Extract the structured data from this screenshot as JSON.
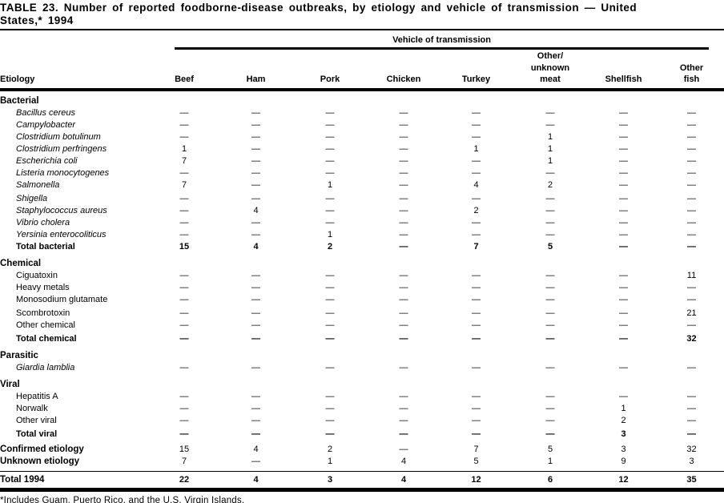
{
  "title": {
    "line1": "TABLE 23. Number of reported foodborne-disease outbreaks, by etiology and vehicle of transmission — United",
    "line2": "States,* 1994"
  },
  "table": {
    "span_header": "Vehicle of transmission",
    "etiology_header": "Etiology",
    "columns": [
      "Beef",
      "Ham",
      "Pork",
      "Chicken",
      "Turkey",
      "Other/\nunknown\nmeat",
      "Shellfish",
      "Other\nfish"
    ],
    "rows": [
      {
        "label": "Bacterial",
        "style": "section"
      },
      {
        "label": "Bacillus cereus",
        "style": "italic",
        "values": [
          "—",
          "—",
          "—",
          "—",
          "—",
          "—",
          "—",
          "—"
        ]
      },
      {
        "label": "Campylobacter",
        "style": "italic",
        "values": [
          "—",
          "—",
          "—",
          "—",
          "—",
          "—",
          "—",
          "—"
        ]
      },
      {
        "label": "Clostridium botulinum",
        "style": "italic",
        "values": [
          "—",
          "—",
          "—",
          "—",
          "—",
          "1",
          "—",
          "—"
        ]
      },
      {
        "label": "Clostridium perfringens",
        "style": "italic",
        "values": [
          "1",
          "—",
          "—",
          "—",
          "1",
          "1",
          "—",
          "—"
        ]
      },
      {
        "label": "Escherichia coli",
        "style": "italic",
        "values": [
          "7",
          "—",
          "—",
          "—",
          "—",
          "1",
          "—",
          "—"
        ]
      },
      {
        "label": "Listeria monocytogenes",
        "style": "italic",
        "values": [
          "—",
          "—",
          "—",
          "—",
          "—",
          "—",
          "—",
          "—"
        ]
      },
      {
        "label": "Salmonella",
        "style": "italic",
        "values": [
          "7",
          "—",
          "1",
          "—",
          "4",
          "2",
          "—",
          "—"
        ]
      },
      {
        "label": "Shigella",
        "style": "italic",
        "gap": true,
        "values": [
          "—",
          "—",
          "—",
          "—",
          "—",
          "—",
          "—",
          "—"
        ]
      },
      {
        "label": "Staphylococcus aureus",
        "style": "italic",
        "values": [
          "—",
          "4",
          "—",
          "—",
          "2",
          "—",
          "—",
          "—"
        ]
      },
      {
        "label": "Vibrio cholera",
        "style": "italic",
        "values": [
          "—",
          "—",
          "—",
          "—",
          "—",
          "—",
          "—",
          "—"
        ]
      },
      {
        "label": "Yersinia enterocoliticus",
        "style": "italic",
        "values": [
          "—",
          "—",
          "1",
          "—",
          "—",
          "—",
          "—",
          "—"
        ]
      },
      {
        "label": "Total bacterial",
        "style": "total",
        "values": [
          "15",
          "4",
          "2",
          "—",
          "7",
          "5",
          "—",
          "—"
        ]
      },
      {
        "label": "Chemical",
        "style": "section"
      },
      {
        "label": "Ciguatoxin",
        "style": "item",
        "values": [
          "—",
          "—",
          "—",
          "—",
          "—",
          "—",
          "—",
          "11"
        ]
      },
      {
        "label": "Heavy metals",
        "style": "item",
        "values": [
          "—",
          "—",
          "—",
          "—",
          "—",
          "—",
          "—",
          "—"
        ]
      },
      {
        "label": "Monosodium glutamate",
        "style": "item",
        "values": [
          "—",
          "—",
          "—",
          "—",
          "—",
          "—",
          "—",
          "—"
        ]
      },
      {
        "label": "Scombrotoxin",
        "style": "item",
        "gap": true,
        "values": [
          "—",
          "—",
          "—",
          "—",
          "—",
          "—",
          "—",
          "21"
        ]
      },
      {
        "label": "Other chemical",
        "style": "item",
        "values": [
          "—",
          "—",
          "—",
          "—",
          "—",
          "—",
          "—",
          "—"
        ]
      },
      {
        "label": "Total chemical",
        "style": "total",
        "gap": true,
        "values": [
          "—",
          "—",
          "—",
          "—",
          "—",
          "—",
          "—",
          "32"
        ]
      },
      {
        "label": "Parasitic",
        "style": "section"
      },
      {
        "label": "Giardia lamblia",
        "style": "italic",
        "values": [
          "—",
          "—",
          "—",
          "—",
          "—",
          "—",
          "—",
          "—"
        ]
      },
      {
        "label": "Viral",
        "style": "section"
      },
      {
        "label": "Hepatitis A",
        "style": "item",
        "values": [
          "—",
          "—",
          "—",
          "—",
          "—",
          "—",
          "—",
          "—"
        ]
      },
      {
        "label": "Norwalk",
        "style": "item",
        "values": [
          "—",
          "—",
          "—",
          "—",
          "—",
          "—",
          "1",
          "—"
        ]
      },
      {
        "label": "Other viral",
        "style": "item",
        "values": [
          "—",
          "—",
          "—",
          "—",
          "—",
          "—",
          "2",
          "—"
        ]
      },
      {
        "label": "Total viral",
        "style": "total",
        "gap": true,
        "values": [
          "—",
          "—",
          "—",
          "—",
          "—",
          "—",
          "3",
          "—"
        ]
      },
      {
        "label": "Confirmed etiology",
        "style": "summary",
        "gap": true,
        "values": [
          "15",
          "4",
          "2",
          "—",
          "7",
          "5",
          "3",
          "32"
        ]
      },
      {
        "label": "Unknown etiology",
        "style": "summary",
        "values": [
          "7",
          "—",
          "1",
          "4",
          "5",
          "1",
          "9",
          "3"
        ]
      },
      {
        "label": "Total 1994",
        "style": "grand",
        "values": [
          "22",
          "4",
          "3",
          "4",
          "12",
          "6",
          "12",
          "35"
        ]
      }
    ]
  },
  "footnote": "*Includes Guam, Puerto Rico, and the U.S. Virgin Islands."
}
